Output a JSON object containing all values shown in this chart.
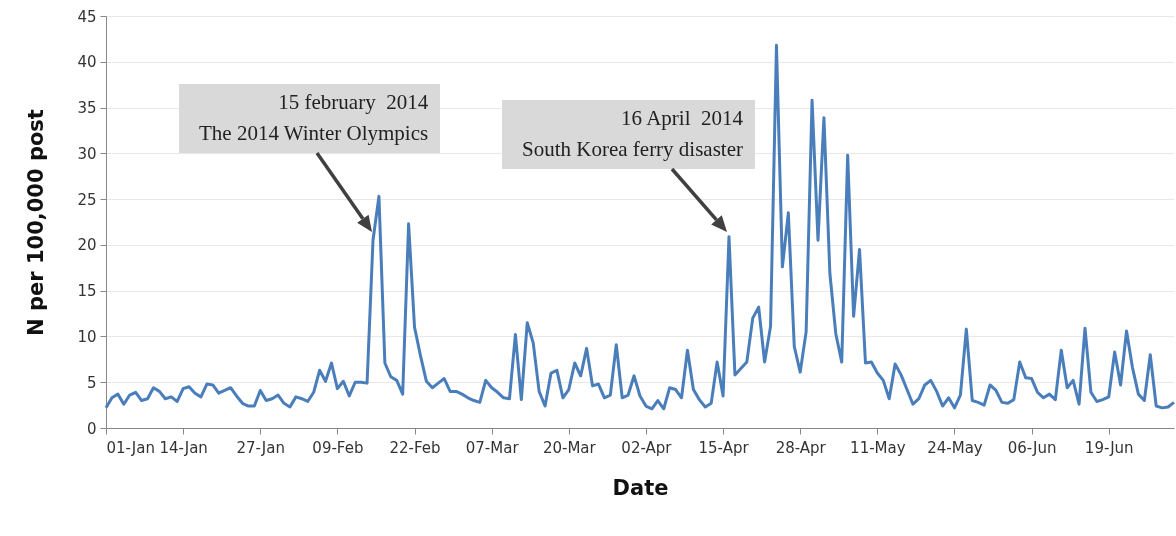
{
  "chart_data": {
    "type": "line",
    "xlabel": "Date",
    "ylabel": "N per 100,000 post",
    "x": [
      "2014-01-01",
      "2014-01-02",
      "2014-01-03",
      "2014-01-04",
      "2014-01-05",
      "2014-01-06",
      "2014-01-07",
      "2014-01-08",
      "2014-01-09",
      "2014-01-10",
      "2014-01-11",
      "2014-01-12",
      "2014-01-13",
      "2014-01-14",
      "2014-01-15",
      "2014-01-16",
      "2014-01-17",
      "2014-01-18",
      "2014-01-19",
      "2014-01-20",
      "2014-01-21",
      "2014-01-22",
      "2014-01-23",
      "2014-01-24",
      "2014-01-25",
      "2014-01-26",
      "2014-01-27",
      "2014-01-28",
      "2014-01-29",
      "2014-01-30",
      "2014-01-31",
      "2014-02-01",
      "2014-02-02",
      "2014-02-03",
      "2014-02-04",
      "2014-02-05",
      "2014-02-06",
      "2014-02-07",
      "2014-02-08",
      "2014-02-09",
      "2014-02-10",
      "2014-02-11",
      "2014-02-12",
      "2014-02-13",
      "2014-02-14",
      "2014-02-15",
      "2014-02-16",
      "2014-02-17",
      "2014-02-18",
      "2014-02-19",
      "2014-02-20",
      "2014-02-21",
      "2014-02-22",
      "2014-02-23",
      "2014-02-24",
      "2014-02-25",
      "2014-02-26",
      "2014-02-27",
      "2014-02-28",
      "2014-03-01",
      "2014-03-02",
      "2014-03-03",
      "2014-03-04",
      "2014-03-05",
      "2014-03-06",
      "2014-03-07",
      "2014-03-08",
      "2014-03-09",
      "2014-03-10",
      "2014-03-11",
      "2014-03-12",
      "2014-03-13",
      "2014-03-14",
      "2014-03-15",
      "2014-03-16",
      "2014-03-17",
      "2014-03-18",
      "2014-03-19",
      "2014-03-20",
      "2014-03-21",
      "2014-03-22",
      "2014-03-23",
      "2014-03-24",
      "2014-03-25",
      "2014-03-26",
      "2014-03-27",
      "2014-03-28",
      "2014-03-29",
      "2014-03-30",
      "2014-03-31",
      "2014-04-01",
      "2014-04-02",
      "2014-04-03",
      "2014-04-04",
      "2014-04-05",
      "2014-04-06",
      "2014-04-07",
      "2014-04-08",
      "2014-04-09",
      "2014-04-10",
      "2014-04-11",
      "2014-04-12",
      "2014-04-13",
      "2014-04-14",
      "2014-04-15",
      "2014-04-16",
      "2014-04-17",
      "2014-04-18",
      "2014-04-19",
      "2014-04-20",
      "2014-04-21",
      "2014-04-22",
      "2014-04-23",
      "2014-04-24",
      "2014-04-25",
      "2014-04-26",
      "2014-04-27",
      "2014-04-28",
      "2014-04-29",
      "2014-04-30",
      "2014-05-01",
      "2014-05-02",
      "2014-05-03",
      "2014-05-04",
      "2014-05-05",
      "2014-05-06",
      "2014-05-07",
      "2014-05-08",
      "2014-05-09",
      "2014-05-10",
      "2014-05-11",
      "2014-05-12",
      "2014-05-13",
      "2014-05-14",
      "2014-05-15",
      "2014-05-16",
      "2014-05-17",
      "2014-05-18",
      "2014-05-19",
      "2014-05-20",
      "2014-05-21",
      "2014-05-22",
      "2014-05-23",
      "2014-05-24",
      "2014-05-25",
      "2014-05-26",
      "2014-05-27",
      "2014-05-28",
      "2014-05-29",
      "2014-05-30",
      "2014-05-31",
      "2014-06-01",
      "2014-06-02",
      "2014-06-03",
      "2014-06-04",
      "2014-06-05",
      "2014-06-06",
      "2014-06-07",
      "2014-06-08",
      "2014-06-09",
      "2014-06-10",
      "2014-06-11",
      "2014-06-12",
      "2014-06-13",
      "2014-06-14",
      "2014-06-15",
      "2014-06-16",
      "2014-06-17",
      "2014-06-18",
      "2014-06-19",
      "2014-06-20",
      "2014-06-21",
      "2014-06-22",
      "2014-06-23",
      "2014-06-24",
      "2014-06-25",
      "2014-06-26",
      "2014-06-27",
      "2014-06-28",
      "2014-06-29",
      "2014-06-30"
    ],
    "series": [
      {
        "color": "#4a7ebb",
        "values": [
          2.2,
          3.3,
          3.7,
          2.6,
          3.6,
          3.9,
          3.0,
          3.2,
          4.4,
          4.0,
          3.2,
          3.4,
          2.9,
          4.3,
          4.5,
          3.8,
          3.4,
          4.8,
          4.7,
          3.8,
          4.1,
          4.4,
          3.5,
          2.7,
          2.4,
          2.4,
          4.1,
          3.0,
          3.2,
          3.6,
          2.7,
          2.3,
          3.4,
          3.2,
          2.9,
          3.9,
          6.3,
          5.1,
          7.1,
          4.3,
          5.1,
          3.5,
          5.0,
          5.0,
          4.9,
          20.5,
          25.3,
          7.1,
          5.6,
          5.2,
          3.7,
          22.3,
          11.0,
          7.9,
          5.1,
          4.4,
          4.9,
          5.4,
          4.0,
          4.0,
          3.7,
          3.3,
          3.0,
          2.8,
          5.2,
          4.4,
          3.9,
          3.3,
          3.2,
          10.2,
          3.1,
          11.5,
          9.3,
          4.0,
          2.4,
          6.0,
          6.3,
          3.3,
          4.2,
          7.1,
          5.7,
          8.7,
          4.6,
          4.8,
          3.3,
          3.6,
          9.1,
          3.3,
          3.6,
          5.7,
          3.5,
          2.4,
          2.1,
          3.0,
          2.1,
          4.4,
          4.2,
          3.3,
          8.5,
          4.2,
          3.1,
          2.3,
          2.7,
          7.2,
          3.5,
          20.9,
          5.8,
          6.5,
          7.2,
          12.0,
          13.2,
          7.2,
          11.1,
          41.8,
          17.6,
          23.5,
          8.9,
          6.1,
          10.5,
          35.8,
          20.5,
          33.9,
          16.9,
          10.3,
          7.2,
          29.8,
          12.2,
          19.5,
          7.1,
          7.2,
          6.0,
          5.2,
          3.2,
          7.0,
          5.8,
          4.2,
          2.6,
          3.2,
          4.7,
          5.2,
          4.0,
          2.4,
          3.3,
          2.2,
          3.6,
          10.8,
          3.0,
          2.8,
          2.5,
          4.7,
          4.1,
          2.8,
          2.7,
          3.1,
          7.2,
          5.5,
          5.4,
          3.9,
          3.3,
          3.7,
          3.1,
          8.5,
          4.4,
          5.2,
          2.6,
          10.9,
          3.9,
          2.9,
          3.1,
          3.4,
          8.3,
          4.7,
          10.6,
          6.6,
          3.7,
          3.0,
          8.0,
          2.4,
          2.2,
          2.3,
          2.8
        ]
      }
    ],
    "xlim": [
      "2014-01-01",
      "2014-06-30"
    ],
    "xticks": [
      {
        "value": "2014-01-01",
        "label": "01-Jan"
      },
      {
        "value": "2014-01-14",
        "label": "14-Jan"
      },
      {
        "value": "2014-01-27",
        "label": "27-Jan"
      },
      {
        "value": "2014-02-09",
        "label": "09-Feb"
      },
      {
        "value": "2014-02-22",
        "label": "22-Feb"
      },
      {
        "value": "2014-03-07",
        "label": "07-Mar"
      },
      {
        "value": "2014-03-20",
        "label": "20-Mar"
      },
      {
        "value": "2014-04-02",
        "label": "02-Apr"
      },
      {
        "value": "2014-04-15",
        "label": "15-Apr"
      },
      {
        "value": "2014-04-28",
        "label": "28-Apr"
      },
      {
        "value": "2014-05-11",
        "label": "11-May"
      },
      {
        "value": "2014-05-24",
        "label": "24-May"
      },
      {
        "value": "2014-06-06",
        "label": "06-Jun"
      },
      {
        "value": "2014-06-19",
        "label": "19-Jun"
      }
    ],
    "ylim": [
      0,
      45
    ],
    "yticks": [
      0,
      5,
      10,
      15,
      20,
      25,
      30,
      35,
      40,
      45
    ],
    "grid": "y",
    "marker": "none",
    "line_style": "solid",
    "annotations": [
      "15 february  2014\nThe 2014 Winter Olympics",
      "16 April  2014\nSouth Korea ferry disaster"
    ]
  }
}
